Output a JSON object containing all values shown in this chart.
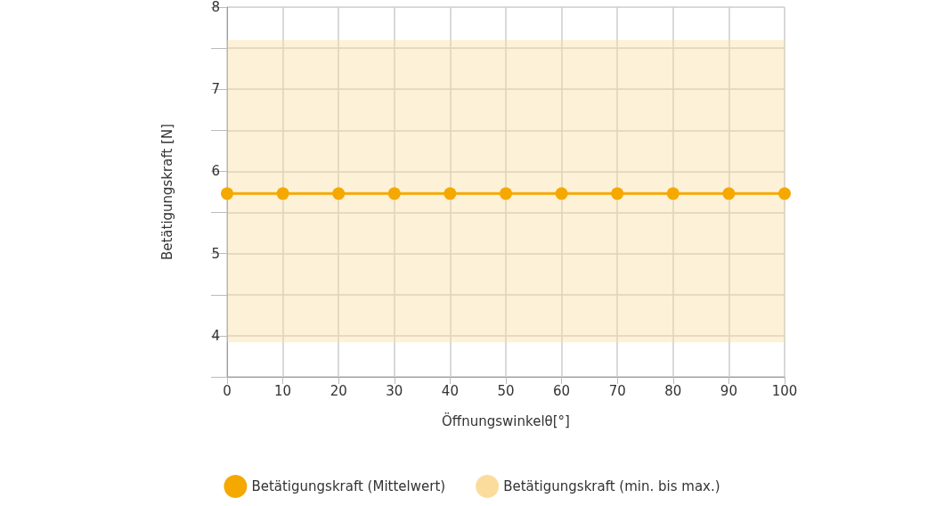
{
  "chart_data": {
    "type": "line",
    "xlabel": "Öffnungswinkelθ[°]",
    "ylabel": "Betätigungskraft [N]",
    "x": [
      0,
      10,
      20,
      30,
      40,
      50,
      60,
      70,
      80,
      90,
      100
    ],
    "series": [
      {
        "name": "Betätigungskraft (Mittelwert)",
        "color": "#f5a800",
        "values": [
          5.73,
          5.73,
          5.73,
          5.73,
          5.73,
          5.73,
          5.73,
          5.73,
          5.73,
          5.73,
          5.73
        ]
      }
    ],
    "bands": [
      {
        "axis": "y",
        "from": 3.92,
        "to": 7.6,
        "label": "Betätigungskraft (min. bis max.)",
        "color": "#fbdc9c"
      }
    ],
    "xlim": [
      0,
      100
    ],
    "xticks": [
      0,
      10,
      20,
      30,
      40,
      50,
      60,
      70,
      80,
      90,
      100
    ],
    "ylim": [
      3.5,
      8
    ],
    "yticks": [
      {
        "value": 3.5,
        "label": null
      },
      4,
      {
        "value": 4.5,
        "label": null
      },
      5,
      {
        "value": 5.5,
        "label": null
      },
      6,
      {
        "value": 6.5,
        "label": null
      },
      7,
      {
        "value": 7.5,
        "label": null
      },
      8
    ],
    "grid": true,
    "legend": "bottom",
    "marker": "circle",
    "line_style": "solid"
  }
}
